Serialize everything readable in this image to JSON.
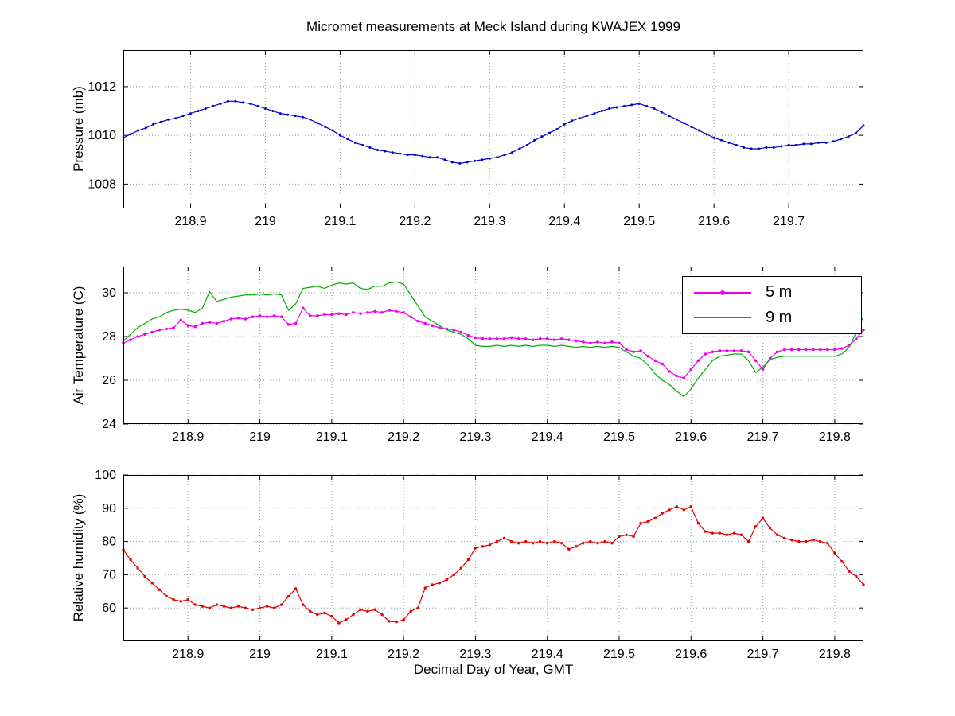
{
  "figure": {
    "title": "Micromet measurements at Meck Island during KWAJEX 1999",
    "background": "#ffffff"
  },
  "chart_data": [
    {
      "name": "pressure",
      "type": "line",
      "title": "",
      "xlabel": "",
      "ylabel": "Pressure (mb)",
      "xlim": [
        218.81,
        219.8
      ],
      "ylim": [
        1007,
        1013.5
      ],
      "xticks": [
        218.9,
        219,
        219.1,
        219.2,
        219.3,
        219.4,
        219.5,
        219.6,
        219.7
      ],
      "xtick_labels": [
        "218.9",
        "219",
        "219.1",
        "219.2",
        "219.3",
        "219.4",
        "219.5",
        "219.6",
        "219.7"
      ],
      "yticks": [
        1008,
        1010,
        1012
      ],
      "ytick_labels": [
        "1008",
        "1010",
        "1012"
      ],
      "grid": true,
      "x_start": 218.81,
      "x_step": 0.01,
      "series": [
        {
          "name": "Pressure",
          "color": "#0000cc",
          "marker": "dot",
          "marker_r": 1.5,
          "values": [
            1009.9,
            1010.05,
            1010.2,
            1010.3,
            1010.45,
            1010.55,
            1010.65,
            1010.7,
            1010.8,
            1010.9,
            1011.0,
            1011.1,
            1011.2,
            1011.3,
            1011.4,
            1011.4,
            1011.35,
            1011.3,
            1011.2,
            1011.1,
            1011.0,
            1010.9,
            1010.85,
            1010.8,
            1010.75,
            1010.65,
            1010.5,
            1010.35,
            1010.2,
            1010.0,
            1009.85,
            1009.7,
            1009.6,
            1009.5,
            1009.4,
            1009.35,
            1009.3,
            1009.25,
            1009.2,
            1009.2,
            1009.15,
            1009.1,
            1009.1,
            1009.0,
            1008.9,
            1008.85,
            1008.9,
            1008.95,
            1009.0,
            1009.05,
            1009.1,
            1009.2,
            1009.3,
            1009.45,
            1009.6,
            1009.8,
            1009.95,
            1010.1,
            1010.25,
            1010.45,
            1010.6,
            1010.7,
            1010.8,
            1010.9,
            1011.0,
            1011.1,
            1011.15,
            1011.2,
            1011.25,
            1011.3,
            1011.2,
            1011.1,
            1010.95,
            1010.8,
            1010.65,
            1010.5,
            1010.35,
            1010.2,
            1010.05,
            1009.9,
            1009.8,
            1009.7,
            1009.6,
            1009.5,
            1009.45,
            1009.45,
            1009.5,
            1009.5,
            1009.55,
            1009.6,
            1009.6,
            1009.65,
            1009.65,
            1009.7,
            1009.7,
            1009.75,
            1009.85,
            1009.95,
            1010.1,
            1010.4
          ]
        }
      ]
    },
    {
      "name": "air-temperature",
      "type": "line",
      "title": "",
      "xlabel": "",
      "ylabel": "Air Temperature (C)",
      "xlim": [
        218.81,
        219.84
      ],
      "ylim": [
        24,
        31.2
      ],
      "xticks": [
        218.9,
        219,
        219.1,
        219.2,
        219.3,
        219.4,
        219.5,
        219.6,
        219.7,
        219.8
      ],
      "xtick_labels": [
        "218.9",
        "219",
        "219.1",
        "219.2",
        "219.3",
        "219.4",
        "219.5",
        "219.6",
        "219.7",
        "219.8"
      ],
      "yticks": [
        24,
        26,
        28,
        30
      ],
      "ytick_labels": [
        "24",
        "26",
        "28",
        "30"
      ],
      "grid": true,
      "legend_position": "northeast",
      "x_start": 218.81,
      "x_step": 0.01,
      "series": [
        {
          "name": "5 m",
          "color": "#ee00ee",
          "marker": "dot",
          "marker_r": 1.8,
          "values": [
            27.7,
            27.85,
            28.0,
            28.1,
            28.2,
            28.3,
            28.35,
            28.4,
            28.75,
            28.5,
            28.45,
            28.6,
            28.65,
            28.6,
            28.7,
            28.8,
            28.85,
            28.8,
            28.9,
            28.95,
            28.9,
            28.95,
            28.9,
            28.55,
            28.6,
            29.3,
            28.95,
            28.95,
            29.0,
            29.0,
            29.05,
            29.0,
            29.1,
            29.05,
            29.1,
            29.15,
            29.1,
            29.2,
            29.15,
            29.1,
            28.9,
            28.7,
            28.6,
            28.5,
            28.4,
            28.35,
            28.3,
            28.2,
            28.05,
            27.95,
            27.9,
            27.9,
            27.9,
            27.9,
            27.95,
            27.9,
            27.9,
            27.85,
            27.9,
            27.9,
            27.85,
            27.9,
            27.85,
            27.8,
            27.75,
            27.7,
            27.75,
            27.7,
            27.75,
            27.7,
            27.4,
            27.3,
            27.35,
            27.1,
            26.9,
            26.75,
            26.4,
            26.2,
            26.1,
            26.5,
            26.9,
            27.2,
            27.3,
            27.35,
            27.35,
            27.35,
            27.35,
            27.3,
            26.9,
            26.5,
            27.0,
            27.3,
            27.4,
            27.4,
            27.4,
            27.4,
            27.4,
            27.4,
            27.4,
            27.4,
            27.45,
            27.6,
            27.9,
            28.3
          ]
        },
        {
          "name": "9 m",
          "color": "#00b000",
          "marker": "none",
          "values": [
            27.8,
            28.1,
            28.4,
            28.6,
            28.8,
            28.9,
            29.1,
            29.2,
            29.25,
            29.2,
            29.1,
            29.3,
            30.05,
            29.6,
            29.7,
            29.8,
            29.85,
            29.9,
            29.9,
            29.95,
            29.9,
            29.95,
            29.9,
            29.2,
            29.5,
            30.2,
            30.25,
            30.3,
            30.2,
            30.35,
            30.45,
            30.4,
            30.45,
            30.2,
            30.15,
            30.3,
            30.3,
            30.45,
            30.5,
            30.4,
            29.9,
            29.4,
            28.9,
            28.7,
            28.5,
            28.3,
            28.2,
            28.1,
            27.9,
            27.6,
            27.55,
            27.55,
            27.6,
            27.55,
            27.6,
            27.55,
            27.6,
            27.55,
            27.6,
            27.6,
            27.55,
            27.6,
            27.55,
            27.5,
            27.55,
            27.5,
            27.55,
            27.5,
            27.55,
            27.5,
            27.3,
            27.1,
            27.0,
            26.7,
            26.3,
            26.0,
            25.8,
            25.5,
            25.25,
            25.6,
            26.1,
            26.5,
            26.9,
            27.1,
            27.15,
            27.2,
            27.2,
            26.9,
            26.35,
            26.6,
            26.95,
            27.05,
            27.1,
            27.1,
            27.1,
            27.1,
            27.1,
            27.1,
            27.1,
            27.1,
            27.2,
            27.5,
            28.2,
            28.9
          ]
        }
      ]
    },
    {
      "name": "relative-humidity",
      "type": "line",
      "title": "",
      "xlabel": "Decimal Day of Year, GMT",
      "ylabel": "Relative humidity (%)",
      "xlim": [
        218.81,
        219.84
      ],
      "ylim": [
        50,
        100
      ],
      "xticks": [
        218.9,
        219,
        219.1,
        219.2,
        219.3,
        219.4,
        219.5,
        219.6,
        219.7,
        219.8
      ],
      "xtick_labels": [
        "218.9",
        "219",
        "219.1",
        "219.2",
        "219.3",
        "219.4",
        "219.5",
        "219.6",
        "219.7",
        "219.8"
      ],
      "yticks": [
        60,
        70,
        80,
        90,
        100
      ],
      "ytick_labels": [
        "60",
        "70",
        "80",
        "90",
        "100"
      ],
      "grid": true,
      "x_start": 218.81,
      "x_step": 0.01,
      "series": [
        {
          "name": "Relative humidity",
          "color": "#e60000",
          "marker": "dot",
          "marker_r": 1.7,
          "values": [
            77.5,
            74.5,
            72.0,
            69.5,
            67.5,
            65.5,
            63.5,
            62.5,
            62.0,
            62.5,
            61.0,
            60.5,
            60.0,
            61.0,
            60.5,
            60.0,
            60.5,
            60.0,
            59.5,
            60.0,
            60.5,
            60.0,
            61.0,
            63.5,
            65.8,
            61.0,
            59.0,
            58.0,
            58.5,
            57.5,
            55.5,
            56.5,
            58.0,
            59.5,
            59.0,
            59.5,
            58.0,
            56.0,
            55.8,
            56.5,
            59.0,
            60.0,
            66.0,
            67.0,
            67.5,
            68.5,
            70.0,
            72.0,
            74.5,
            78.0,
            78.5,
            79.0,
            80.0,
            81.0,
            80.0,
            79.5,
            80.0,
            79.5,
            80.0,
            79.5,
            80.0,
            79.5,
            77.7,
            78.5,
            79.5,
            80.0,
            79.5,
            80.0,
            79.5,
            81.5,
            82.0,
            81.5,
            85.5,
            86.0,
            87.0,
            88.5,
            89.5,
            90.5,
            89.5,
            90.5,
            85.5,
            83.0,
            82.5,
            82.5,
            82.0,
            82.5,
            82.0,
            80.0,
            84.5,
            87.0,
            84.0,
            82.0,
            81.0,
            80.5,
            80.0,
            80.0,
            80.5,
            80.0,
            79.5,
            76.5,
            74.0,
            71.0,
            69.5,
            67.0
          ]
        }
      ]
    }
  ]
}
